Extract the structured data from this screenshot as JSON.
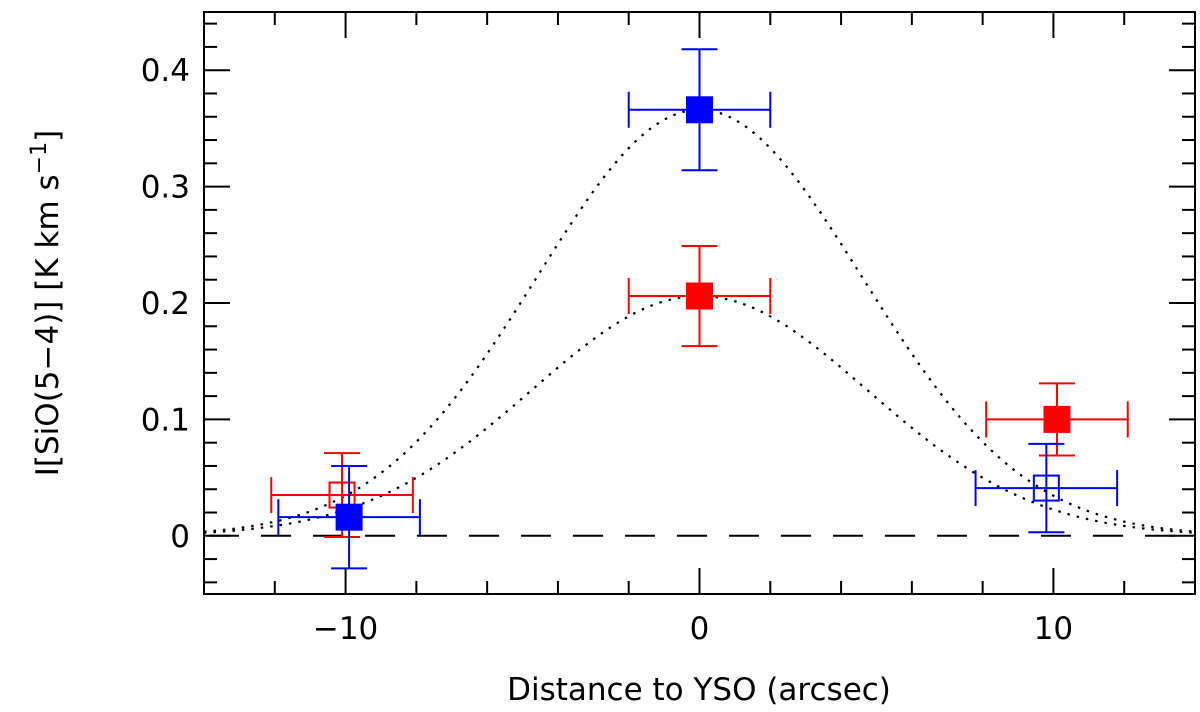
{
  "chart_data": {
    "type": "scatter",
    "title": "",
    "xlabel": "Distance to YSO (arcsec)",
    "ylabel": "I[SiO(5−4)]  [K km s",
    "ylabel_sup": "−1",
    "ylabel_end": "]",
    "xlim": [
      -14,
      14
    ],
    "ylim": [
      -0.05,
      0.45
    ],
    "x_ticks": [
      -10,
      0,
      10
    ],
    "x_tick_labels": [
      "−10",
      "0",
      "10"
    ],
    "y_ticks": [
      0,
      0.1,
      0.2,
      0.3,
      0.4
    ],
    "y_tick_labels": [
      "0",
      "0.1",
      "0.2",
      "0.3",
      "0.4"
    ],
    "x_minor_step": 2,
    "y_minor_step": 0.02,
    "grid": false,
    "reference_line": {
      "y": 0,
      "style": "dashed",
      "color": "#000000"
    },
    "series": [
      {
        "color": "#ff0000",
        "marker": "filled-square",
        "points": [
          {
            "x": 0,
            "y": 0.206,
            "xerr": 2,
            "yerr": 0.043
          },
          {
            "x": 10.1,
            "y": 0.1,
            "xerr": 2,
            "yerr": 0.031
          }
        ]
      },
      {
        "color": "#ff0000",
        "marker": "open-square",
        "points": [
          {
            "x": -10.1,
            "y": 0.035,
            "xerr": 2,
            "yerr": 0.036
          }
        ]
      },
      {
        "color": "#0000ff",
        "marker": "filled-square",
        "points": [
          {
            "x": 0,
            "y": 0.366,
            "xerr": 2,
            "yerr": 0.052
          },
          {
            "x": -9.9,
            "y": 0.016,
            "xerr": 2,
            "yerr": 0.044
          }
        ]
      },
      {
        "color": "#0000ff",
        "marker": "open-square",
        "points": [
          {
            "x": 9.8,
            "y": 0.041,
            "xerr": 2,
            "yerr": 0.038
          }
        ]
      }
    ],
    "curves": [
      {
        "type": "gaussian",
        "style": "dotted",
        "color": "#000000",
        "amplitude": 0.366,
        "center": 0,
        "sigma": 4.6
      },
      {
        "type": "gaussian",
        "style": "dotted",
        "color": "#000000",
        "amplitude": 0.206,
        "center": 0,
        "sigma": 4.75
      }
    ]
  }
}
